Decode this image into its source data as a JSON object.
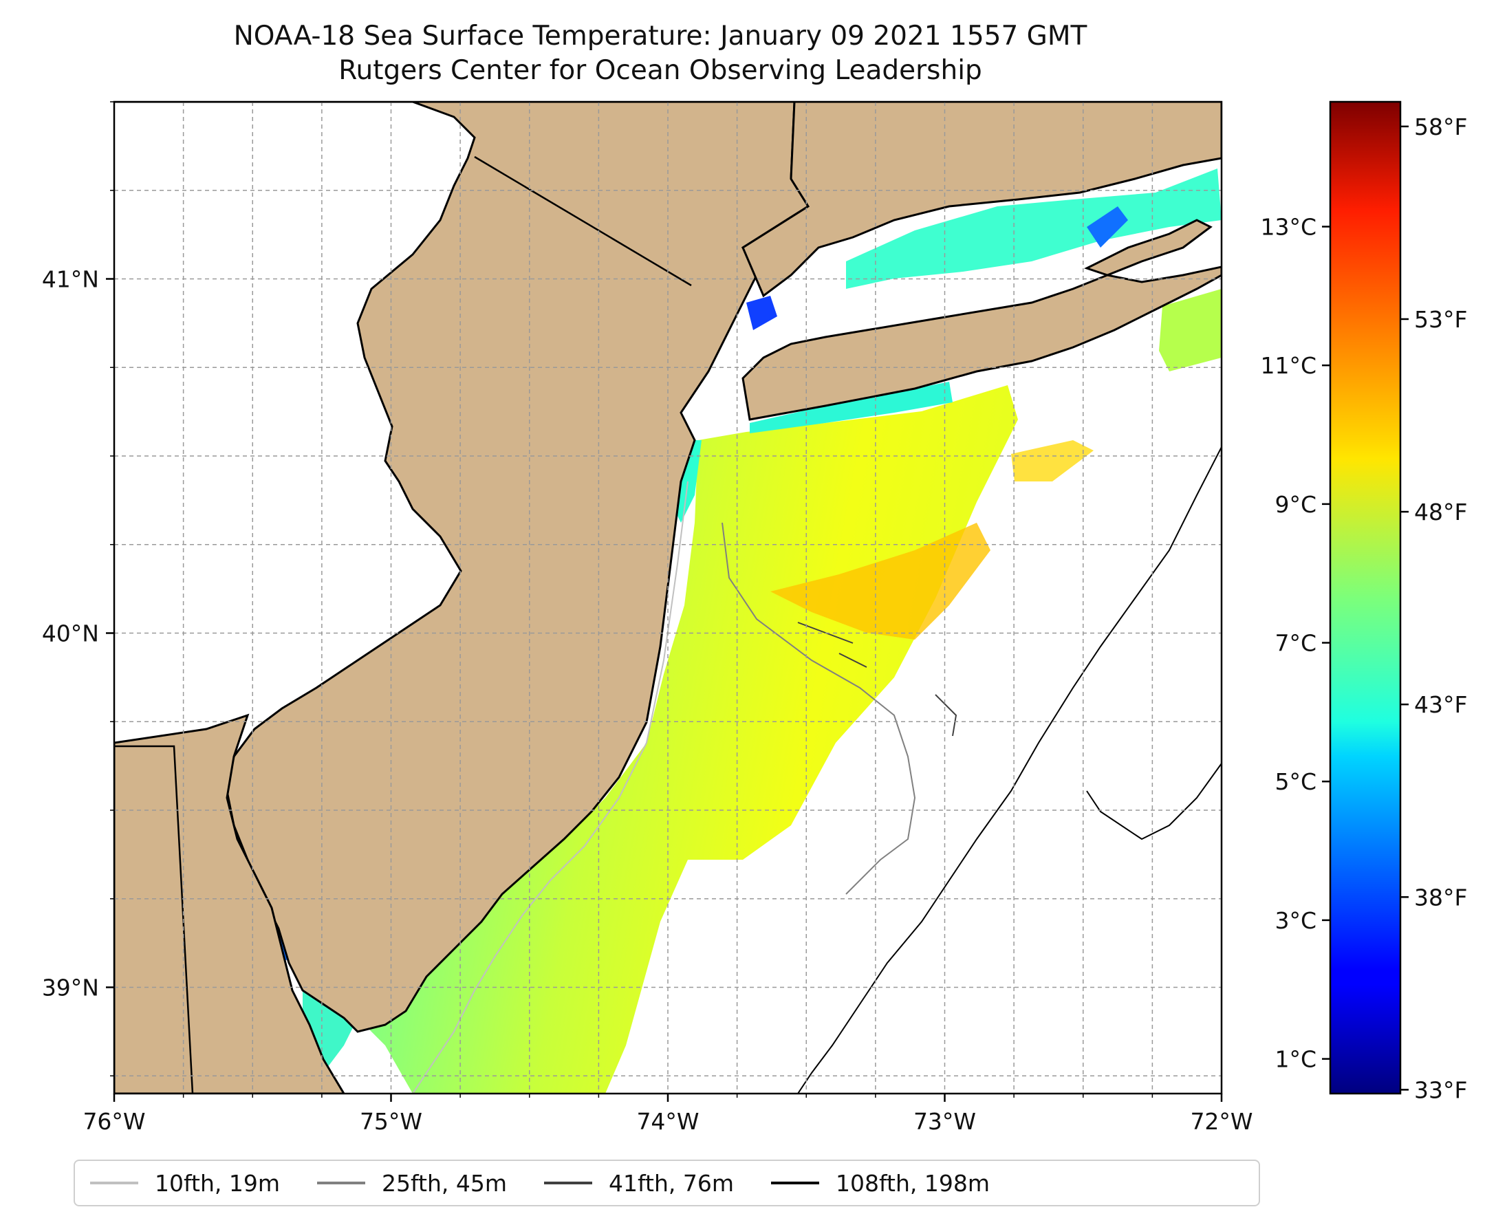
{
  "title": {
    "line1": "NOAA-18 Sea Surface Temperature: January 09 2021 1557 GMT",
    "line2": "Rutgers Center for Ocean Observing Leadership"
  },
  "map": {
    "lon_range": [
      -76,
      -72
    ],
    "lat_range": [
      38.7,
      41.5
    ],
    "x_ticks": [
      "76°W",
      "75°W",
      "74°W",
      "73°W",
      "72°W"
    ],
    "y_ticks": [
      "39°N",
      "40°N",
      "41°N"
    ],
    "land_color": "#d2b48c",
    "ocean_color": "#ffffff",
    "gridlines": true
  },
  "colorbar": {
    "colormap": "jet",
    "celsius_ticks": [
      "1°C",
      "3°C",
      "5°C",
      "7°C",
      "9°C",
      "11°C",
      "13°C"
    ],
    "fahrenheit_ticks": [
      "33°F",
      "38°F",
      "43°F",
      "48°F",
      "53°F",
      "58°F"
    ]
  },
  "legend": [
    {
      "label": "10fth, 19m",
      "color": "#c0c0c0"
    },
    {
      "label": "25fth, 45m",
      "color": "#808080"
    },
    {
      "label": "41fth, 76m",
      "color": "#404040"
    },
    {
      "label": "108fth, 198m",
      "color": "#000000"
    }
  ]
}
